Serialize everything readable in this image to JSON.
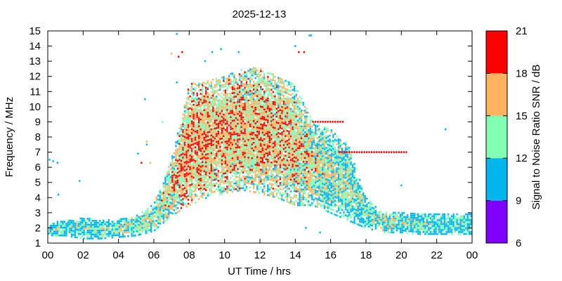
{
  "chart_data": {
    "type": "heatmap",
    "title": "2025-12-13",
    "xlabel": "UT Time / hrs",
    "ylabel": "Frequency / MHz",
    "xlim": [
      0,
      24
    ],
    "ylim": [
      1,
      15
    ],
    "x_ticks": [
      "00",
      "02",
      "04",
      "06",
      "08",
      "10",
      "12",
      "14",
      "16",
      "18",
      "20",
      "22",
      "00"
    ],
    "y_ticks": [
      "1",
      "2",
      "3",
      "4",
      "5",
      "6",
      "7",
      "8",
      "9",
      "10",
      "11",
      "12",
      "13",
      "14",
      "15"
    ],
    "colorbar": {
      "label": "Signal to Noise Ratio SNR / dB",
      "ticks": [
        "6",
        "9",
        "12",
        "15",
        "18",
        "21"
      ],
      "bins": [
        {
          "min": 6,
          "max": 9,
          "color": "#8000ff"
        },
        {
          "min": 9,
          "max": 12,
          "color": "#00b5eb"
        },
        {
          "min": 12,
          "max": 15,
          "color": "#80ffb4"
        },
        {
          "min": 15,
          "max": 18,
          "color": "#ffb360"
        },
        {
          "min": 18,
          "max": 21,
          "color": "#ff0000"
        }
      ]
    },
    "profile": [
      {
        "t": 0.0,
        "lo": 1.5,
        "hi": 2.3,
        "snr": 10.5
      },
      {
        "t": 1.0,
        "lo": 1.5,
        "hi": 2.5,
        "snr": 11.0
      },
      {
        "t": 2.0,
        "lo": 1.3,
        "hi": 2.7,
        "snr": 11.5
      },
      {
        "t": 3.0,
        "lo": 1.3,
        "hi": 2.5,
        "snr": 11.5
      },
      {
        "t": 4.0,
        "lo": 1.4,
        "hi": 2.6,
        "snr": 12.0
      },
      {
        "t": 5.0,
        "lo": 1.5,
        "hi": 2.8,
        "snr": 12.5
      },
      {
        "t": 6.0,
        "lo": 1.8,
        "hi": 3.6,
        "snr": 13.0
      },
      {
        "t": 7.0,
        "lo": 2.8,
        "hi": 6.5,
        "snr": 14.5
      },
      {
        "t": 8.0,
        "lo": 3.5,
        "hi": 11.5,
        "snr": 16.5
      },
      {
        "t": 9.0,
        "lo": 4.0,
        "hi": 11.8,
        "snr": 16.0
      },
      {
        "t": 10.0,
        "lo": 4.3,
        "hi": 12.0,
        "snr": 16.0
      },
      {
        "t": 11.0,
        "lo": 4.5,
        "hi": 12.5,
        "snr": 15.5
      },
      {
        "t": 12.0,
        "lo": 4.3,
        "hi": 12.6,
        "snr": 15.5
      },
      {
        "t": 13.0,
        "lo": 4.0,
        "hi": 12.0,
        "snr": 15.5
      },
      {
        "t": 14.0,
        "lo": 3.5,
        "hi": 11.5,
        "snr": 15.0
      },
      {
        "t": 15.0,
        "lo": 3.5,
        "hi": 9.0,
        "snr": 14.0
      },
      {
        "t": 16.0,
        "lo": 3.0,
        "hi": 8.5,
        "snr": 13.0
      },
      {
        "t": 17.0,
        "lo": 2.5,
        "hi": 7.5,
        "snr": 12.5
      },
      {
        "t": 18.0,
        "lo": 2.0,
        "hi": 4.0,
        "snr": 12.0
      },
      {
        "t": 19.0,
        "lo": 1.7,
        "hi": 3.0,
        "snr": 12.5
      },
      {
        "t": 20.0,
        "lo": 1.7,
        "hi": 3.0,
        "snr": 12.0
      },
      {
        "t": 21.0,
        "lo": 1.6,
        "hi": 3.0,
        "snr": 11.0
      },
      {
        "t": 22.0,
        "lo": 1.6,
        "hi": 3.0,
        "snr": 11.0
      },
      {
        "t": 23.0,
        "lo": 1.6,
        "hi": 3.0,
        "snr": 10.5
      },
      {
        "t": 24.0,
        "lo": 1.6,
        "hi": 3.0,
        "snr": 10.5
      }
    ],
    "extra_points": [
      {
        "t": 0.1,
        "f": 6.5,
        "snr": 10.5
      },
      {
        "t": 0.3,
        "f": 6.4,
        "snr": 10.5
      },
      {
        "t": 0.55,
        "f": 6.3,
        "snr": 10.5
      },
      {
        "t": 0.6,
        "f": 4.2,
        "snr": 10.5
      },
      {
        "t": 1.8,
        "f": 5.1,
        "snr": 10.5
      },
      {
        "t": 5.1,
        "f": 6.9,
        "snr": 10.5
      },
      {
        "t": 5.3,
        "f": 6.3,
        "snr": 19.5
      },
      {
        "t": 5.5,
        "f": 10.5,
        "snr": 10.5
      },
      {
        "t": 5.6,
        "f": 7.7,
        "snr": 16.5
      },
      {
        "t": 5.6,
        "f": 7.5,
        "snr": 10.5
      },
      {
        "t": 5.8,
        "f": 6.3,
        "snr": 16.5
      },
      {
        "t": 6.5,
        "f": 9.0,
        "snr": 13.5
      },
      {
        "t": 7.0,
        "f": 13.5,
        "snr": 16.5
      },
      {
        "t": 7.3,
        "f": 14.8,
        "snr": 10.5
      },
      {
        "t": 7.4,
        "f": 13.3,
        "snr": 19.5
      },
      {
        "t": 7.6,
        "f": 13.6,
        "snr": 19.5
      },
      {
        "t": 7.3,
        "f": 11.6,
        "snr": 10.5
      },
      {
        "t": 8.9,
        "f": 13.0,
        "snr": 10.5
      },
      {
        "t": 9.3,
        "f": 13.6,
        "snr": 10.5
      },
      {
        "t": 9.8,
        "f": 13.8,
        "snr": 10.5
      },
      {
        "t": 10.8,
        "f": 13.6,
        "snr": 10.5
      },
      {
        "t": 14.0,
        "f": 14.0,
        "snr": 10.5
      },
      {
        "t": 14.2,
        "f": 13.6,
        "snr": 19.5
      },
      {
        "t": 14.5,
        "f": 13.6,
        "snr": 19.5
      },
      {
        "t": 14.8,
        "f": 14.7,
        "snr": 10.5
      },
      {
        "t": 14.9,
        "f": 14.7,
        "snr": 10.5
      },
      {
        "t": 14.6,
        "f": 2.0,
        "snr": 10.5
      },
      {
        "t": 15.4,
        "f": 1.7,
        "snr": 10.5
      },
      {
        "t": 20.0,
        "f": 4.8,
        "snr": 10.5
      },
      {
        "t": 22.5,
        "f": 8.5,
        "snr": 10.5
      },
      {
        "t": 18.2,
        "f": 1.0,
        "snr": 13.5
      }
    ],
    "band_7MHz": {
      "t0": 16.5,
      "t1": 20.4,
      "f": 7.0,
      "snr": 19.5
    },
    "band_9MHz": {
      "t0": 15.0,
      "t1": 16.8,
      "f": 9.0,
      "snr": 19.5
    }
  }
}
